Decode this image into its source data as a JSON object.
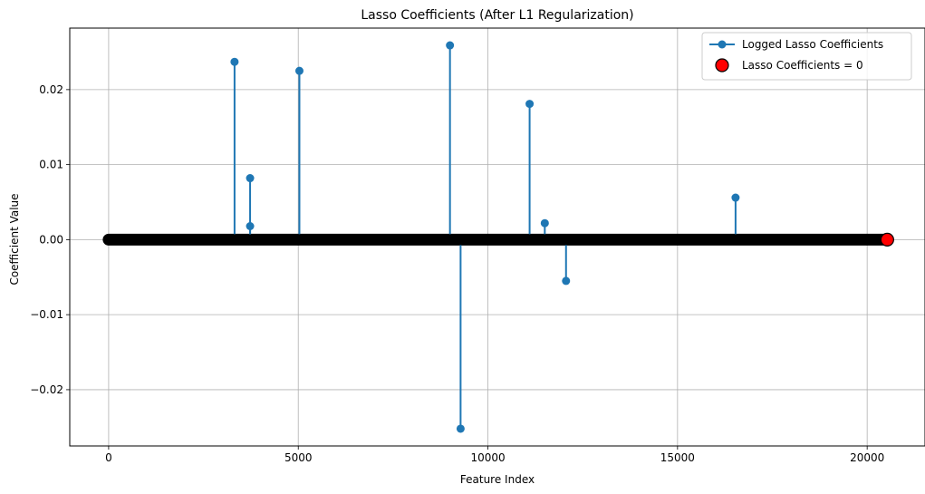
{
  "chart_data": {
    "type": "stem",
    "title": "Lasso Coefficients (After L1 Regularization)",
    "xlabel": "Feature Index",
    "ylabel": "Coefficient Value",
    "xlim": [
      -1025,
      21525
    ],
    "ylim": [
      -0.0275,
      0.0282
    ],
    "xticks": [
      0,
      5000,
      10000,
      15000,
      20000
    ],
    "xtick_labels": [
      "0",
      "5000",
      "10000",
      "15000",
      "20000"
    ],
    "yticks": [
      -0.02,
      -0.01,
      0.0,
      0.01,
      0.02
    ],
    "ytick_labels": [
      "−0.02",
      "−0.01",
      "0.00",
      "0.01",
      "0.02"
    ],
    "grid": true,
    "legend_position": "top-right",
    "zero_range": [
      0,
      20530
    ],
    "series": [
      {
        "name": "Logged Lasso Coefficients",
        "color": "#1f77b4",
        "marker": "circle",
        "x": [
          3320,
          3730,
          3730,
          5030,
          9000,
          9280,
          11100,
          11500,
          12060,
          16530
        ],
        "values": [
          0.0237,
          0.0082,
          0.0018,
          0.0225,
          0.0259,
          -0.0252,
          0.0181,
          0.0022,
          -0.0055,
          0.0056
        ]
      },
      {
        "name": "Lasso Coefficients = 0",
        "color": "#ff0000",
        "edge_color": "#000000",
        "marker": "circle",
        "x": [
          20530
        ],
        "values": [
          0.0
        ]
      }
    ]
  }
}
